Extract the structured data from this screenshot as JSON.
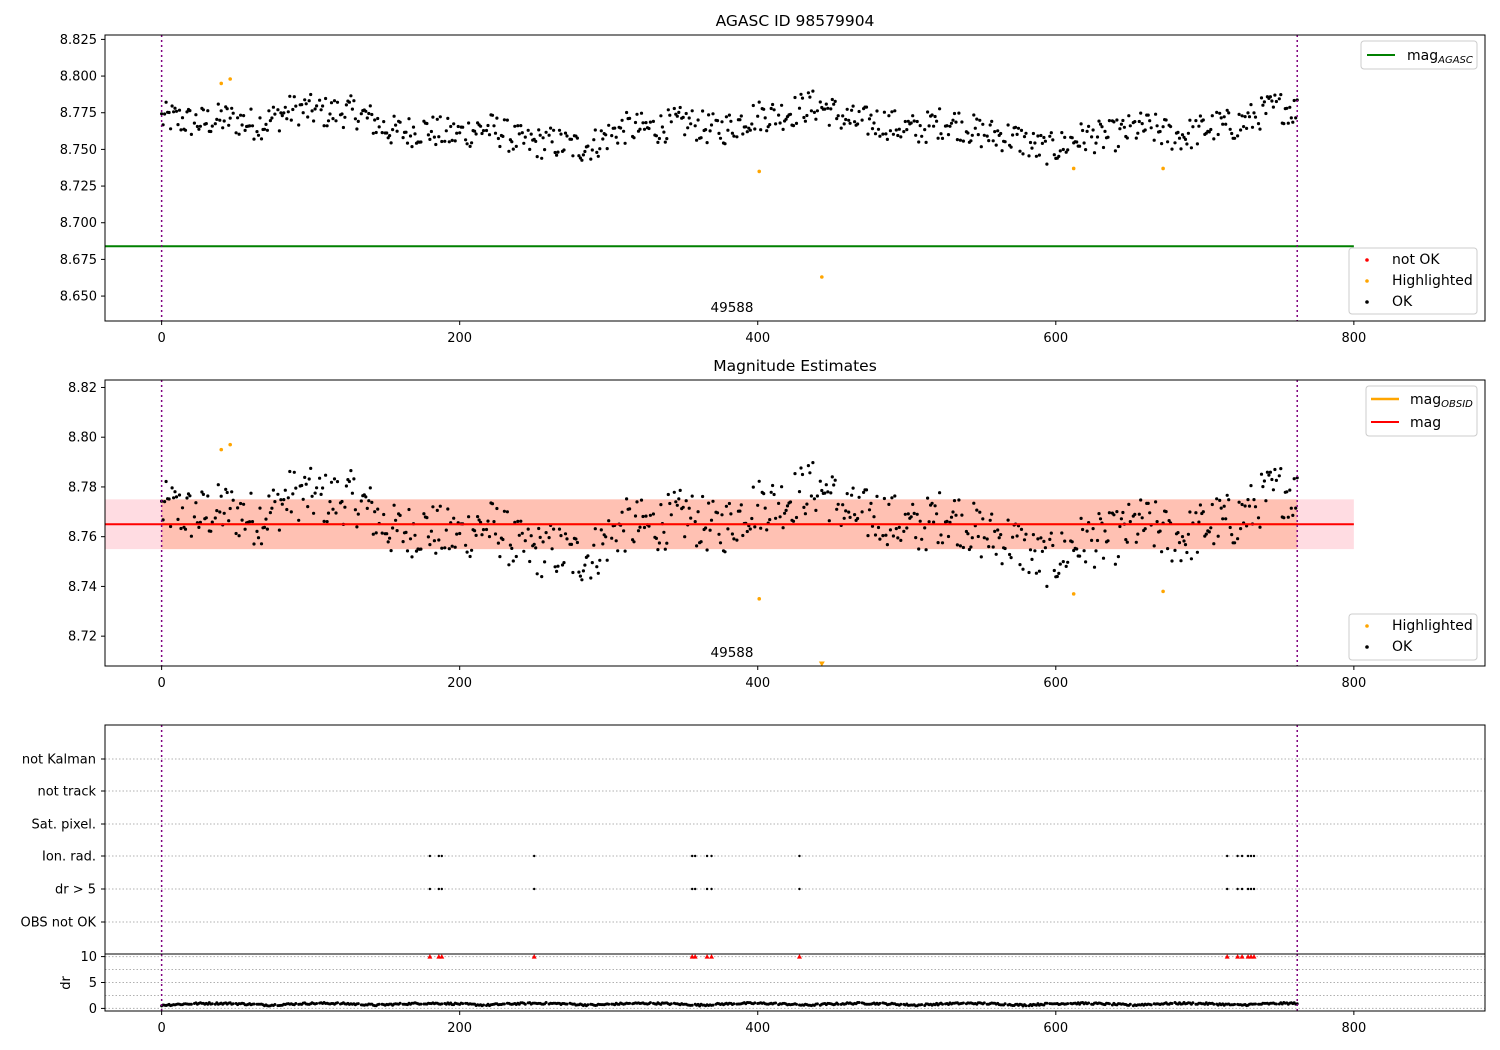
{
  "figure": {
    "panel_titles": [
      "AGASC ID 98579904",
      "Magnitude Estimates"
    ],
    "annotation": "49588",
    "x_ticks": [
      0,
      200,
      400,
      600,
      800
    ]
  },
  "legends": {
    "top_right": [
      "mag_AGASC"
    ],
    "top_lower": [
      "not OK",
      "Highlighted",
      "OK"
    ],
    "mid_right": [
      "mag_OBSID",
      "mag"
    ],
    "mid_lower": [
      "Highlighted",
      "OK"
    ]
  },
  "colors": {
    "ok": "#000000",
    "highlighted": "#ffa500",
    "not_ok": "#ff0000",
    "mag_agasc": "#008000",
    "mag_obsid": "#ffa500",
    "mag": "#ff0000",
    "band_outer": "#ffc0cb",
    "band_inner": "#ffa07a",
    "obs_boundary": "#800080"
  },
  "chart_data": [
    {
      "type": "scatter",
      "title": "AGASC ID 98579904",
      "xlim": [
        -38,
        888
      ],
      "ylim": [
        8.633,
        8.828
      ],
      "y_ticks": [
        8.65,
        8.675,
        8.7,
        8.725,
        8.75,
        8.775,
        8.8,
        8.825
      ],
      "grid": false,
      "legend_positions": [
        "upper right",
        "lower right"
      ],
      "series": [
        {
          "name": "mag_AGASC",
          "kind": "hline",
          "y": 8.684,
          "x_range": [
            -38,
            800
          ]
        },
        {
          "name": "OK",
          "kind": "scatter",
          "points": "~760 samples, x 0–762, y ~8.740–8.792 (same samples as Magnitude Estimates)"
        },
        {
          "name": "Highlighted",
          "kind": "scatter",
          "x": [
            40,
            46,
            401,
            443,
            612,
            672
          ],
          "y": [
            8.795,
            8.798,
            8.735,
            8.663,
            8.737,
            8.737
          ]
        },
        {
          "name": "not OK",
          "kind": "scatter",
          "x": [],
          "y": []
        }
      ],
      "vlines": [
        0,
        762
      ],
      "annotations": [
        {
          "text": "49588",
          "x": 381,
          "y": 8.642
        }
      ]
    },
    {
      "type": "scatter",
      "title": "Magnitude Estimates",
      "xlim": [
        -38,
        888
      ],
      "ylim": [
        8.708,
        8.823
      ],
      "y_ticks": [
        8.72,
        8.74,
        8.76,
        8.78,
        8.8,
        8.82
      ],
      "grid": false,
      "legend_positions": [
        "upper right",
        "lower right"
      ],
      "series": [
        {
          "name": "mag_OBSID",
          "kind": "line",
          "y": 8.765,
          "x_range": [
            0,
            762
          ],
          "band": [
            8.755,
            8.775
          ]
        },
        {
          "name": "mag",
          "kind": "line",
          "y": 8.765,
          "x_range": [
            -38,
            800
          ],
          "band": [
            8.755,
            8.775
          ]
        },
        {
          "name": "OK",
          "kind": "scatter",
          "points": "~760 samples, x 0–762, y ~8.740–8.792"
        },
        {
          "name": "Highlighted",
          "kind": "scatter",
          "x": [
            40,
            46,
            401,
            612,
            672
          ],
          "y": [
            8.795,
            8.797,
            8.735,
            8.737,
            8.738
          ]
        },
        {
          "name": "Highlighted (clipped)",
          "kind": "scatter",
          "x": [
            443
          ],
          "y": [
            8.709
          ]
        }
      ],
      "vlines": [
        0,
        762
      ],
      "annotations": [
        {
          "text": "49588",
          "x": 381,
          "y": 8.712
        }
      ]
    },
    {
      "type": "scatter",
      "title": "",
      "xlim": [
        -38,
        888
      ],
      "y_categories": [
        "not Kalman",
        "not track",
        "Sat. pixel.",
        "Ion. rad.",
        "dr > 5",
        "OBS not OK"
      ],
      "grid": true,
      "series": [
        {
          "name": "Ion. rad.",
          "x": [
            180,
            186,
            188,
            250,
            356,
            358,
            366,
            369,
            428,
            715,
            722,
            725,
            729,
            731,
            733
          ]
        },
        {
          "name": "dr > 5",
          "x": [
            180,
            186,
            188,
            250,
            356,
            358,
            366,
            369,
            428,
            715,
            722,
            725,
            729,
            731,
            733
          ]
        }
      ],
      "vlines": [
        0,
        762
      ]
    },
    {
      "type": "scatter",
      "title": "",
      "ylabel": "dr",
      "xlim": [
        -38,
        888
      ],
      "ylim": [
        -0.5,
        10.5
      ],
      "y_ticks": [
        0,
        5,
        10
      ],
      "grid": true,
      "series": [
        {
          "name": "dr",
          "kind": "scatter",
          "points": "~760 samples, x 0–762, y ~0.2–1.2"
        },
        {
          "name": "dr clipped",
          "kind": "markers",
          "x": [
            180,
            186,
            188,
            250,
            356,
            358,
            366,
            369,
            428,
            715,
            722,
            725,
            729,
            731,
            733
          ],
          "y": 10
        }
      ],
      "vlines": [
        0,
        762
      ]
    }
  ]
}
